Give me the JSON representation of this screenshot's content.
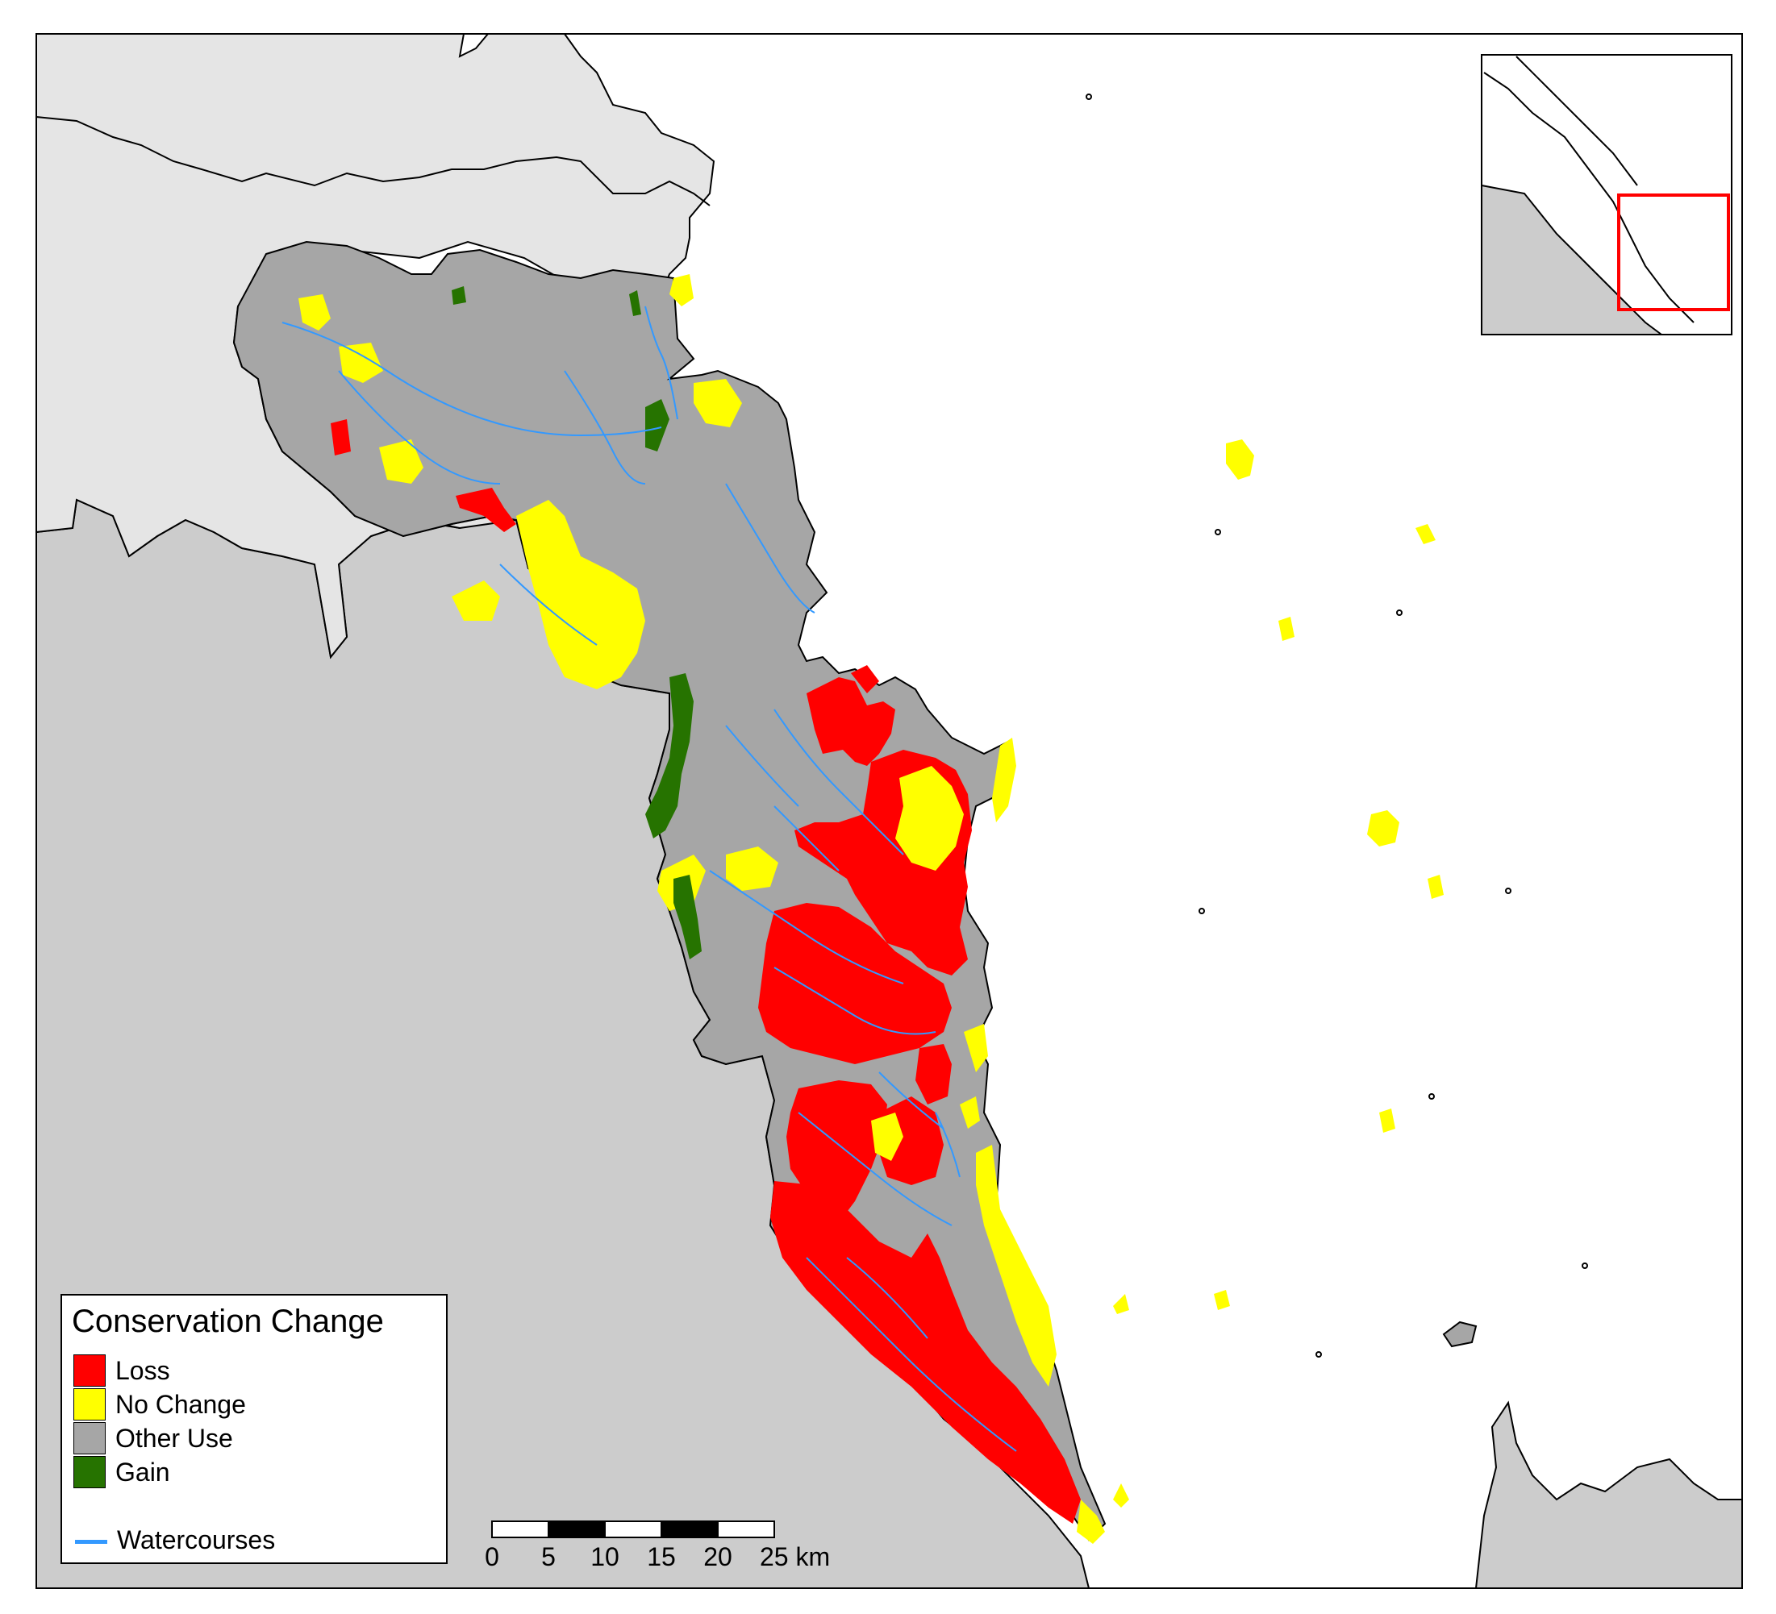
{
  "legend": {
    "title": "Conservation Change",
    "items": [
      {
        "label": "Loss",
        "color": "#ff0000"
      },
      {
        "label": "No Change",
        "color": "#ffff00"
      },
      {
        "label": "Other Use",
        "color": "#a6a6a6"
      },
      {
        "label": "Gain",
        "color": "#267300"
      }
    ],
    "watercourses": {
      "label": "Watercourses",
      "color": "#3399ff"
    }
  },
  "scale_bar": {
    "ticks": [
      "0",
      "5",
      "10",
      "15",
      "20",
      "25 km"
    ]
  },
  "colors": {
    "land_outside_light": "#e5e5e5",
    "land_outside_dark": "#cccccc",
    "sea": "#ffffff",
    "inset_extent": "#ff0000"
  },
  "inset": {
    "description_icon": "locator-map-icon"
  }
}
